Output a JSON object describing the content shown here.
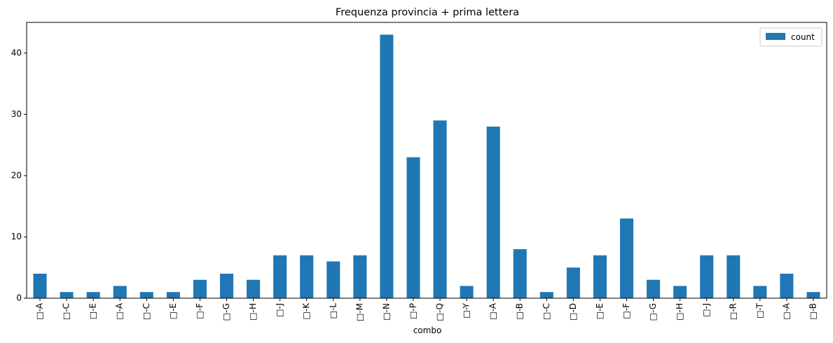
{
  "chart_data": {
    "type": "bar",
    "title": "Frequenza provincia + prima lettera",
    "xlabel": "combo",
    "ylabel": "",
    "ylim": [
      0,
      45
    ],
    "yticks": [
      0,
      10,
      20,
      30,
      40
    ],
    "grid": false,
    "legend_position": "top-right",
    "categories": [
      "□-A",
      "□-C",
      "□-E",
      "□-A",
      "□-C",
      "□-E",
      "□-F",
      "□-G",
      "□-H",
      "□-J",
      "□-K",
      "□-L",
      "□-M",
      "□-N",
      "□-P",
      "□-Q",
      "□-Y",
      "□-A",
      "□-B",
      "□-C",
      "□-D",
      "□-E",
      "□-F",
      "□-G",
      "□-H",
      "□-J",
      "□-R",
      "□-T",
      "□-A",
      "□-B"
    ],
    "series": [
      {
        "name": "count",
        "color": "#1f77b4",
        "values": [
          4,
          1,
          1,
          2,
          1,
          1,
          3,
          4,
          3,
          7,
          7,
          6,
          7,
          43,
          23,
          29,
          2,
          28,
          8,
          1,
          5,
          7,
          13,
          3,
          2,
          7,
          7,
          2,
          4,
          1
        ]
      }
    ]
  }
}
